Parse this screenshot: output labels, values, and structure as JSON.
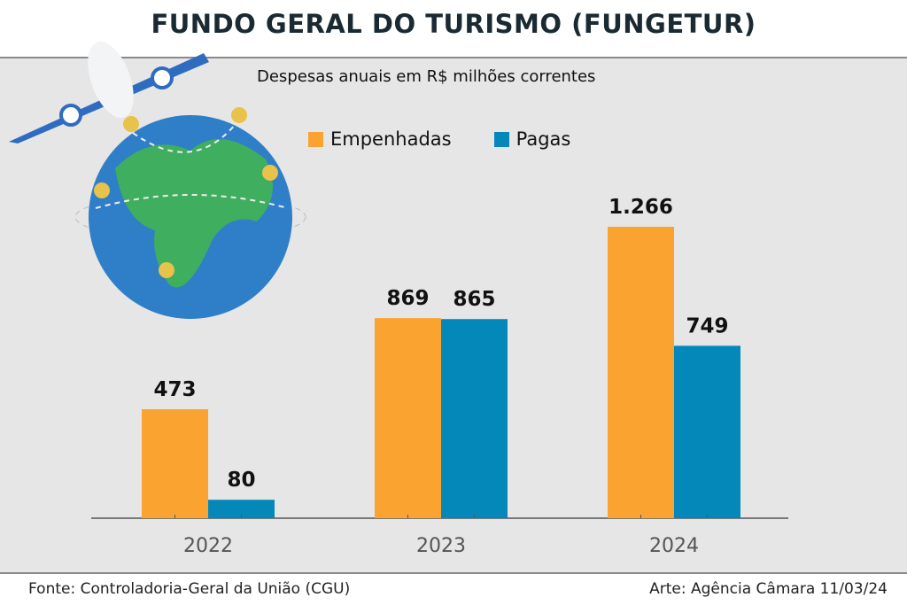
{
  "chart_data": {
    "type": "bar",
    "title": "FUNDO GERAL DO TURISMO (FUNGETUR)",
    "subtitle": "Despesas anuais em R$ milhões correntes",
    "categories": [
      "2022",
      "2023",
      "2024"
    ],
    "series": [
      {
        "name": "Empenhadas",
        "color": "#fba330",
        "values": [
          473,
          869,
          1266
        ],
        "labels": [
          "473",
          "869",
          "1.266"
        ]
      },
      {
        "name": "Pagas",
        "color": "#0488b9",
        "values": [
          80,
          865,
          749
        ],
        "labels": [
          "80",
          "865",
          "749"
        ]
      }
    ],
    "xlabel": "",
    "ylabel": "",
    "ylim": [
      0,
      1266
    ],
    "grid": false,
    "legend_position": "top-center"
  },
  "footer": {
    "source": "Fonte: Controladoria-Geral da União (CGU)",
    "credit": "Arte: Agência Câmara 11/03/24"
  }
}
